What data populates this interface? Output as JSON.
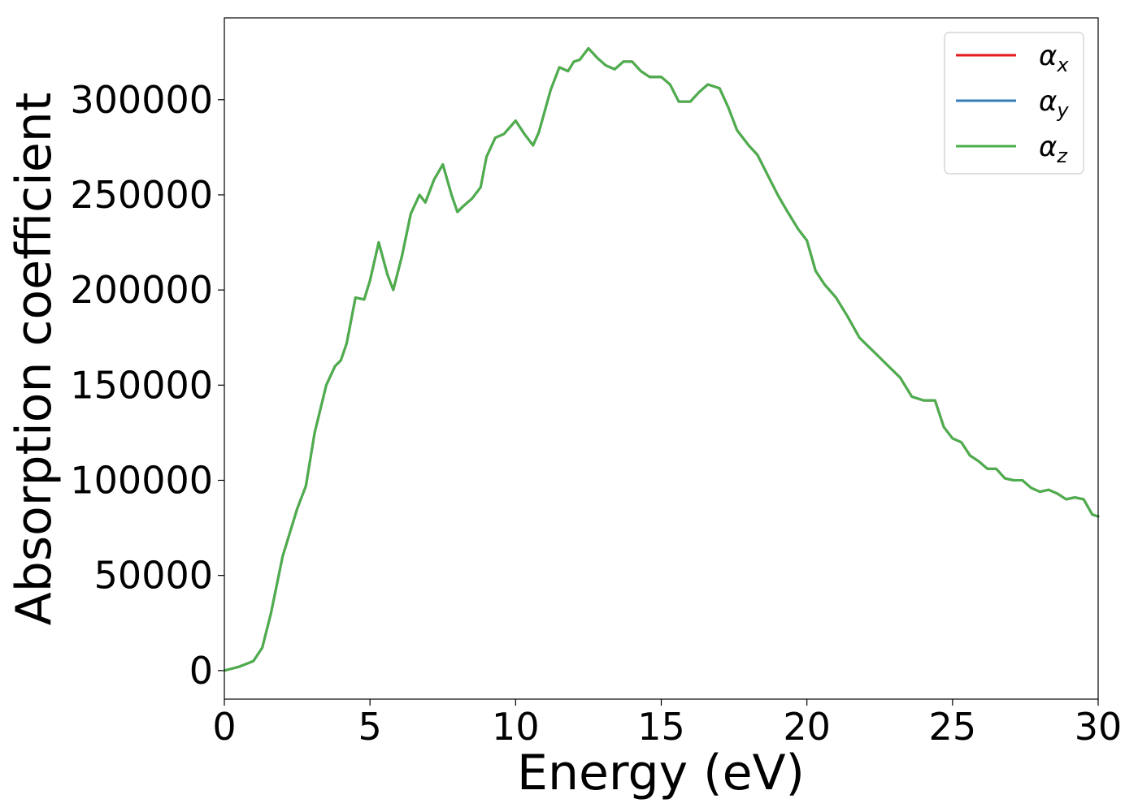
{
  "chart_data": {
    "type": "line",
    "title": "",
    "xlabel": "Energy (eV)",
    "ylabel": "Absorption coefficient",
    "xlim": [
      0,
      30
    ],
    "ylim": [
      -15000,
      343000
    ],
    "xticks": [
      0,
      5,
      10,
      15,
      20,
      25,
      30
    ],
    "xtick_labels": [
      "0",
      "5",
      "10",
      "15",
      "20",
      "25",
      "30"
    ],
    "yticks": [
      0,
      50000,
      100000,
      150000,
      200000,
      250000,
      300000
    ],
    "ytick_labels": [
      "0",
      "50000",
      "100000",
      "150000",
      "200000",
      "250000",
      "300000"
    ],
    "grid": false,
    "legend_position": "top-right",
    "x": [
      0,
      0.5,
      1.0,
      1.3,
      1.6,
      2.0,
      2.5,
      2.8,
      3.1,
      3.5,
      3.8,
      4.0,
      4.2,
      4.5,
      4.8,
      5.0,
      5.3,
      5.6,
      5.8,
      6.1,
      6.4,
      6.7,
      6.9,
      7.2,
      7.5,
      7.8,
      8.0,
      8.2,
      8.5,
      8.8,
      9.0,
      9.3,
      9.6,
      10.0,
      10.3,
      10.6,
      10.8,
      11.2,
      11.5,
      11.8,
      12.0,
      12.2,
      12.5,
      12.8,
      13.1,
      13.4,
      13.7,
      14.0,
      14.3,
      14.6,
      15.0,
      15.3,
      15.6,
      16.0,
      16.3,
      16.6,
      17.0,
      17.3,
      17.6,
      18.0,
      18.3,
      18.6,
      19.0,
      19.3,
      19.7,
      20.0,
      20.3,
      20.6,
      21.0,
      21.4,
      21.8,
      22.0,
      22.4,
      22.8,
      23.2,
      23.6,
      24.0,
      24.4,
      24.7,
      25.0,
      25.3,
      25.6,
      25.9,
      26.2,
      26.5,
      26.8,
      27.1,
      27.4,
      27.7,
      28.0,
      28.3,
      28.6,
      28.9,
      29.2,
      29.5,
      29.8,
      30.0
    ],
    "series": [
      {
        "name": "α_x",
        "symbol": "α",
        "subscript": "x",
        "color": "#e41a1c",
        "values": [
          0,
          2000,
          5000,
          12000,
          30000,
          60000,
          85000,
          97000,
          125000,
          150000,
          160000,
          163000,
          172000,
          196000,
          195000,
          205000,
          225000,
          208000,
          200000,
          218000,
          240000,
          250000,
          246000,
          258000,
          266000,
          250000,
          241000,
          244000,
          248000,
          254000,
          270000,
          280000,
          282000,
          289000,
          282000,
          276000,
          283000,
          305000,
          317000,
          315000,
          320000,
          321000,
          327000,
          322000,
          318000,
          316000,
          320000,
          320000,
          315000,
          312000,
          312000,
          308000,
          299000,
          299000,
          304000,
          308000,
          306000,
          296000,
          284000,
          276000,
          271000,
          262000,
          250000,
          242000,
          232000,
          226000,
          210000,
          203000,
          196000,
          186000,
          175000,
          172000,
          166000,
          160000,
          154000,
          144000,
          142000,
          142000,
          128000,
          122000,
          120000,
          113000,
          110000,
          106000,
          106000,
          101000,
          100000,
          100000,
          96000,
          94000,
          95000,
          93000,
          90000,
          91000,
          90000,
          82000,
          81000
        ]
      },
      {
        "name": "α_y",
        "symbol": "α",
        "subscript": "y",
        "color": "#377eb8",
        "values": [
          0,
          2000,
          5000,
          12000,
          30000,
          60000,
          85000,
          97000,
          125000,
          150000,
          160000,
          163000,
          172000,
          196000,
          195000,
          205000,
          225000,
          208000,
          200000,
          218000,
          240000,
          250000,
          246000,
          258000,
          266000,
          250000,
          241000,
          244000,
          248000,
          254000,
          270000,
          280000,
          282000,
          289000,
          282000,
          276000,
          283000,
          305000,
          317000,
          315000,
          320000,
          321000,
          327000,
          322000,
          318000,
          316000,
          320000,
          320000,
          315000,
          312000,
          312000,
          308000,
          299000,
          299000,
          304000,
          308000,
          306000,
          296000,
          284000,
          276000,
          271000,
          262000,
          250000,
          242000,
          232000,
          226000,
          210000,
          203000,
          196000,
          186000,
          175000,
          172000,
          166000,
          160000,
          154000,
          144000,
          142000,
          142000,
          128000,
          122000,
          120000,
          113000,
          110000,
          106000,
          106000,
          101000,
          100000,
          100000,
          96000,
          94000,
          95000,
          93000,
          90000,
          91000,
          90000,
          82000,
          81000
        ]
      },
      {
        "name": "α_z",
        "symbol": "α",
        "subscript": "z",
        "color": "#4daf4a",
        "values": [
          0,
          2000,
          5000,
          12000,
          30000,
          60000,
          85000,
          97000,
          125000,
          150000,
          160000,
          163000,
          172000,
          196000,
          195000,
          205000,
          225000,
          208000,
          200000,
          218000,
          240000,
          250000,
          246000,
          258000,
          266000,
          250000,
          241000,
          244000,
          248000,
          254000,
          270000,
          280000,
          282000,
          289000,
          282000,
          276000,
          283000,
          305000,
          317000,
          315000,
          320000,
          321000,
          327000,
          322000,
          318000,
          316000,
          320000,
          320000,
          315000,
          312000,
          312000,
          308000,
          299000,
          299000,
          304000,
          308000,
          306000,
          296000,
          284000,
          276000,
          271000,
          262000,
          250000,
          242000,
          232000,
          226000,
          210000,
          203000,
          196000,
          186000,
          175000,
          172000,
          166000,
          160000,
          154000,
          144000,
          142000,
          142000,
          128000,
          122000,
          120000,
          113000,
          110000,
          106000,
          106000,
          101000,
          100000,
          100000,
          96000,
          94000,
          95000,
          93000,
          90000,
          91000,
          90000,
          82000,
          81000
        ]
      }
    ]
  }
}
